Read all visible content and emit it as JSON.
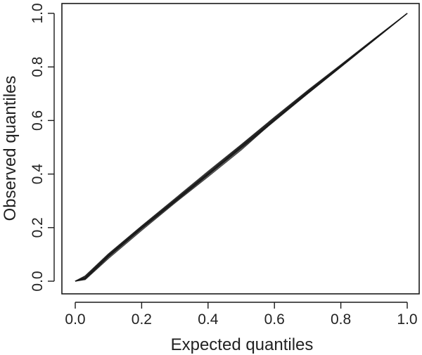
{
  "chart_data": {
    "type": "line",
    "title": "",
    "xlabel": "Expected quantiles",
    "ylabel": "Observed quantiles",
    "xlim": [
      0,
      1
    ],
    "ylim": [
      0,
      1
    ],
    "xticks": [
      0.0,
      0.2,
      0.4,
      0.6,
      0.8,
      1.0
    ],
    "yticks": [
      0.0,
      0.2,
      0.4,
      0.6,
      0.8,
      1.0
    ],
    "xtick_labels": [
      "0.0",
      "0.2",
      "0.4",
      "0.6",
      "0.8",
      "1.0"
    ],
    "ytick_labels": [
      "0.0",
      "0.2",
      "0.4",
      "0.6",
      "0.8",
      "1.0"
    ],
    "grid": false,
    "legend": "none",
    "line_color": "#1a1a1a",
    "series": [
      {
        "x": [
          0,
          0.03,
          0.1,
          0.2,
          0.3,
          0.4,
          0.5,
          0.6,
          0.7,
          0.8,
          0.9,
          1.0
        ],
        "values": [
          0,
          0.006,
          0.085,
          0.19,
          0.292,
          0.39,
          0.49,
          0.6,
          0.7,
          0.8,
          0.9,
          1.0
        ]
      },
      {
        "x": [
          0,
          0.03,
          0.1,
          0.2,
          0.3,
          0.4,
          0.5,
          0.6,
          0.7,
          0.8,
          0.9,
          1.0
        ],
        "values": [
          0,
          0.01,
          0.092,
          0.198,
          0.3,
          0.4,
          0.5,
          0.605,
          0.705,
          0.802,
          0.902,
          1.0
        ]
      },
      {
        "x": [
          0,
          0.03,
          0.1,
          0.2,
          0.3,
          0.4,
          0.5,
          0.6,
          0.7,
          0.8,
          0.9,
          1.0
        ],
        "values": [
          0,
          0.018,
          0.1,
          0.205,
          0.305,
          0.406,
          0.508,
          0.61,
          0.71,
          0.806,
          0.904,
          1.0
        ]
      },
      {
        "x": [
          0,
          0.03,
          0.1,
          0.2,
          0.3,
          0.4,
          0.5,
          0.6,
          0.7,
          0.8,
          0.9,
          1.0
        ],
        "values": [
          0,
          0.012,
          0.095,
          0.2,
          0.298,
          0.398,
          0.5,
          0.602,
          0.702,
          0.803,
          0.9,
          1.0
        ]
      },
      {
        "x": [
          0,
          0.03,
          0.1,
          0.2,
          0.3,
          0.4,
          0.5,
          0.6,
          0.7,
          0.8,
          0.9,
          1.0
        ],
        "values": [
          0,
          0.015,
          0.098,
          0.202,
          0.302,
          0.404,
          0.505,
          0.607,
          0.708,
          0.805,
          0.903,
          1.0
        ]
      },
      {
        "x": [
          0,
          0.03,
          0.1,
          0.2,
          0.3,
          0.4,
          0.5,
          0.6,
          0.7,
          0.8,
          0.9,
          1.0
        ],
        "values": [
          0,
          0.008,
          0.09,
          0.195,
          0.295,
          0.395,
          0.495,
          0.598,
          0.7,
          0.8,
          0.9,
          1.0
        ]
      },
      {
        "x": [
          0,
          0.03,
          0.1,
          0.2,
          0.3,
          0.4,
          0.5,
          0.6,
          0.7,
          0.8,
          0.9,
          1.0
        ],
        "values": [
          0,
          0.02,
          0.102,
          0.206,
          0.308,
          0.41,
          0.51,
          0.612,
          0.712,
          0.808,
          0.905,
          1.0
        ]
      },
      {
        "x": [
          0,
          0.03,
          0.1,
          0.2,
          0.3,
          0.4,
          0.5,
          0.6,
          0.7,
          0.8,
          0.9,
          1.0
        ],
        "values": [
          0,
          0.011,
          0.093,
          0.199,
          0.301,
          0.401,
          0.502,
          0.603,
          0.704,
          0.803,
          0.901,
          1.0
        ]
      },
      {
        "x": [
          0,
          0.03,
          0.1,
          0.2,
          0.3,
          0.4,
          0.5,
          0.6,
          0.7,
          0.8,
          0.9,
          1.0
        ],
        "values": [
          0,
          0.013,
          0.096,
          0.2,
          0.3,
          0.4,
          0.503,
          0.604,
          0.706,
          0.804,
          0.902,
          1.0
        ]
      },
      {
        "x": [
          0,
          0.03,
          0.1,
          0.2,
          0.3,
          0.4,
          0.5,
          0.6,
          0.7,
          0.8,
          0.9,
          1.0
        ],
        "values": [
          0,
          0.009,
          0.091,
          0.196,
          0.297,
          0.397,
          0.498,
          0.6,
          0.703,
          0.801,
          0.901,
          1.0
        ]
      }
    ]
  }
}
